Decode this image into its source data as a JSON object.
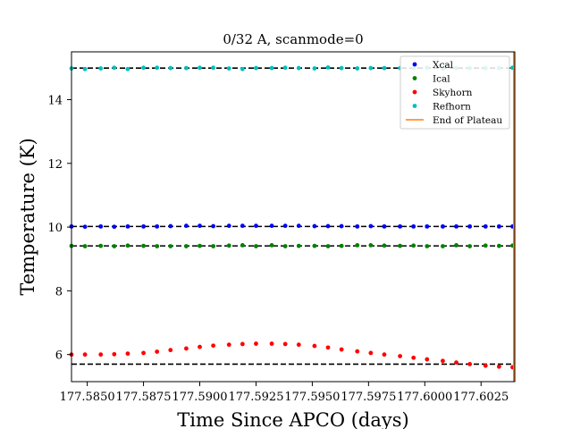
{
  "chart_data": {
    "type": "scatter",
    "title": "0/32 A, scanmode=0",
    "xlabel": "Time Since APCO (days)",
    "ylabel": "Temperature (K)",
    "xlim": [
      177.5843,
      177.604
    ],
    "ylim": [
      5.15,
      15.5
    ],
    "xticks": [
      177.585,
      177.5875,
      177.59,
      177.5925,
      177.595,
      177.5975,
      177.6,
      177.6025
    ],
    "xtick_labels": [
      "177.5850",
      "177.5875",
      "177.5900",
      "177.5925",
      "177.5950",
      "177.5975",
      "177.6000",
      "177.6025"
    ],
    "yticks": [
      6,
      8,
      10,
      12,
      14
    ],
    "ytick_labels": [
      "6",
      "8",
      "10",
      "12",
      "14"
    ],
    "grid": false,
    "legend_position": "upper right",
    "x": [
      177.5843,
      177.5849,
      177.5856,
      177.5862,
      177.5868,
      177.5875,
      177.5881,
      177.5887,
      177.5894,
      177.59,
      177.5906,
      177.5913,
      177.5919,
      177.5925,
      177.5932,
      177.5938,
      177.5944,
      177.5951,
      177.5957,
      177.5963,
      177.597,
      177.5976,
      177.5982,
      177.5989,
      177.5995,
      177.6001,
      177.6008,
      177.6014,
      177.602,
      177.6027,
      177.6033,
      177.6039
    ],
    "series": [
      {
        "name": "Xcal",
        "color": "#0000ff",
        "values": [
          10.02,
          10.01,
          10.02,
          10.01,
          10.02,
          10.02,
          10.02,
          10.03,
          10.04,
          10.04,
          10.03,
          10.04,
          10.04,
          10.04,
          10.04,
          10.04,
          10.04,
          10.03,
          10.03,
          10.03,
          10.02,
          10.03,
          10.02,
          10.02,
          10.02,
          10.02,
          10.02,
          10.02,
          10.02,
          10.02,
          10.02,
          10.02
        ]
      },
      {
        "name": "Ical",
        "color": "#008000",
        "values": [
          9.41,
          9.4,
          9.41,
          9.4,
          9.42,
          9.41,
          9.4,
          9.4,
          9.4,
          9.41,
          9.4,
          9.42,
          9.43,
          9.4,
          9.43,
          9.4,
          9.41,
          9.41,
          9.4,
          9.41,
          9.43,
          9.43,
          9.42,
          9.41,
          9.42,
          9.4,
          9.4,
          9.43,
          9.4,
          9.42,
          9.41,
          9.42
        ]
      },
      {
        "name": "Skyhorn",
        "color": "#ff0000",
        "values": [
          6.0,
          6.0,
          6.0,
          6.01,
          6.03,
          6.05,
          6.09,
          6.14,
          6.19,
          6.24,
          6.28,
          6.31,
          6.33,
          6.34,
          6.34,
          6.33,
          6.31,
          6.27,
          6.22,
          6.16,
          6.1,
          6.05,
          6.0,
          5.95,
          5.9,
          5.85,
          5.8,
          5.75,
          5.7,
          5.65,
          5.62,
          5.6
        ]
      },
      {
        "name": "Refhorn",
        "color": "#00bfbf",
        "values": [
          14.98,
          14.96,
          14.98,
          15.0,
          14.96,
          15.0,
          15.0,
          14.99,
          14.99,
          15.0,
          15.0,
          14.98,
          14.96,
          14.99,
          14.99,
          15.0,
          14.99,
          14.98,
          15.01,
          14.99,
          14.98,
          14.99,
          14.99,
          14.99,
          14.99,
          15.0,
          14.98,
          14.99,
          14.99,
          14.99,
          14.99,
          15.0
        ]
      },
      {
        "name": "End of Plateau",
        "color": "#ff7f0e",
        "style": "vertical-line",
        "x": 177.60395
      }
    ],
    "reference_lines_dashed_black_y": [
      14.99,
      10.02,
      9.41,
      5.7
    ]
  }
}
